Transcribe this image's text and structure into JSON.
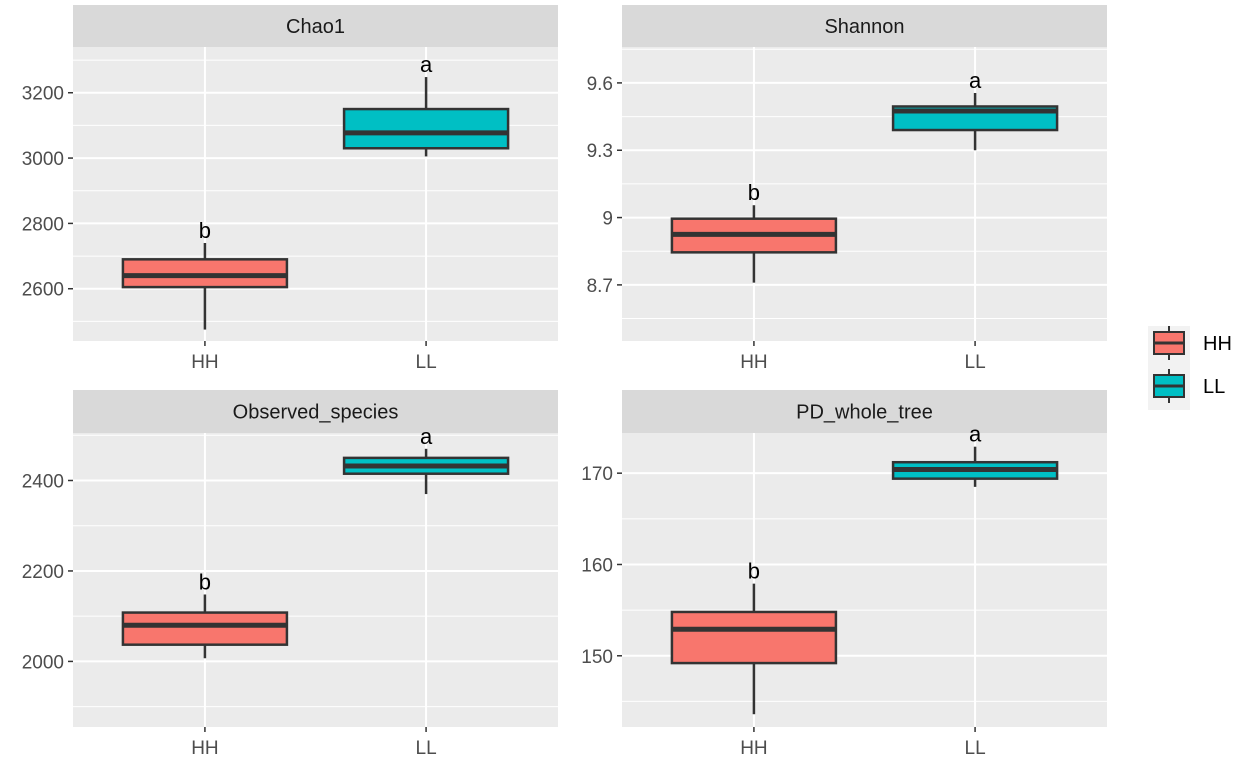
{
  "chart_data": [
    {
      "type": "box",
      "title": "Chao1",
      "categories": [
        "HH",
        "LL"
      ],
      "ylim": [
        2440,
        3340
      ],
      "yticks": [
        2600,
        2800,
        3000,
        3200
      ],
      "boxes": [
        {
          "group": "HH",
          "min": 2475,
          "q1": 2605,
          "median": 2640,
          "q3": 2690,
          "max": 2740,
          "letter": "b"
        },
        {
          "group": "LL",
          "min": 3005,
          "q1": 3030,
          "median": 3077,
          "q3": 3150,
          "max": 3248,
          "letter": "a"
        }
      ]
    },
    {
      "type": "box",
      "title": "Shannon",
      "categories": [
        "HH",
        "LL"
      ],
      "ylim": [
        8.45,
        9.76
      ],
      "yticks": [
        8.7,
        9.0,
        9.3,
        9.6
      ],
      "boxes": [
        {
          "group": "HH",
          "min": 8.71,
          "q1": 8.845,
          "median": 8.925,
          "q3": 8.995,
          "max": 9.055,
          "letter": "b"
        },
        {
          "group": "LL",
          "min": 9.3,
          "q1": 9.39,
          "median": 9.475,
          "q3": 9.495,
          "max": 9.555,
          "letter": "a"
        }
      ]
    },
    {
      "type": "box",
      "title": "Observed_species",
      "categories": [
        "HH",
        "LL"
      ],
      "ylim": [
        1855,
        2505
      ],
      "yticks": [
        2000,
        2200,
        2400
      ],
      "boxes": [
        {
          "group": "HH",
          "min": 2007,
          "q1": 2037,
          "median": 2080,
          "q3": 2108,
          "max": 2148,
          "letter": "b"
        },
        {
          "group": "LL",
          "min": 2370,
          "q1": 2415,
          "median": 2432,
          "q3": 2450,
          "max": 2470,
          "letter": "a"
        }
      ]
    },
    {
      "type": "box",
      "title": "PD_whole_tree",
      "categories": [
        "HH",
        "LL"
      ],
      "ylim": [
        142.2,
        174.4
      ],
      "yticks": [
        150,
        160,
        170
      ],
      "boxes": [
        {
          "group": "HH",
          "min": 143.6,
          "q1": 149.2,
          "median": 152.9,
          "q3": 154.8,
          "max": 157.9,
          "letter": "b"
        },
        {
          "group": "LL",
          "min": 168.5,
          "q1": 169.4,
          "median": 170.4,
          "q3": 171.2,
          "max": 172.9,
          "letter": "a"
        }
      ]
    }
  ],
  "legend": {
    "position": "right",
    "items": [
      {
        "label": "HH",
        "color": "#f8766d"
      },
      {
        "label": "LL",
        "color": "#00bfc4"
      }
    ]
  },
  "colors": {
    "panel_bg": "#ebebeb",
    "strip_bg": "#d9d9d9",
    "grid": "#ffffff",
    "outline": "#333333"
  }
}
